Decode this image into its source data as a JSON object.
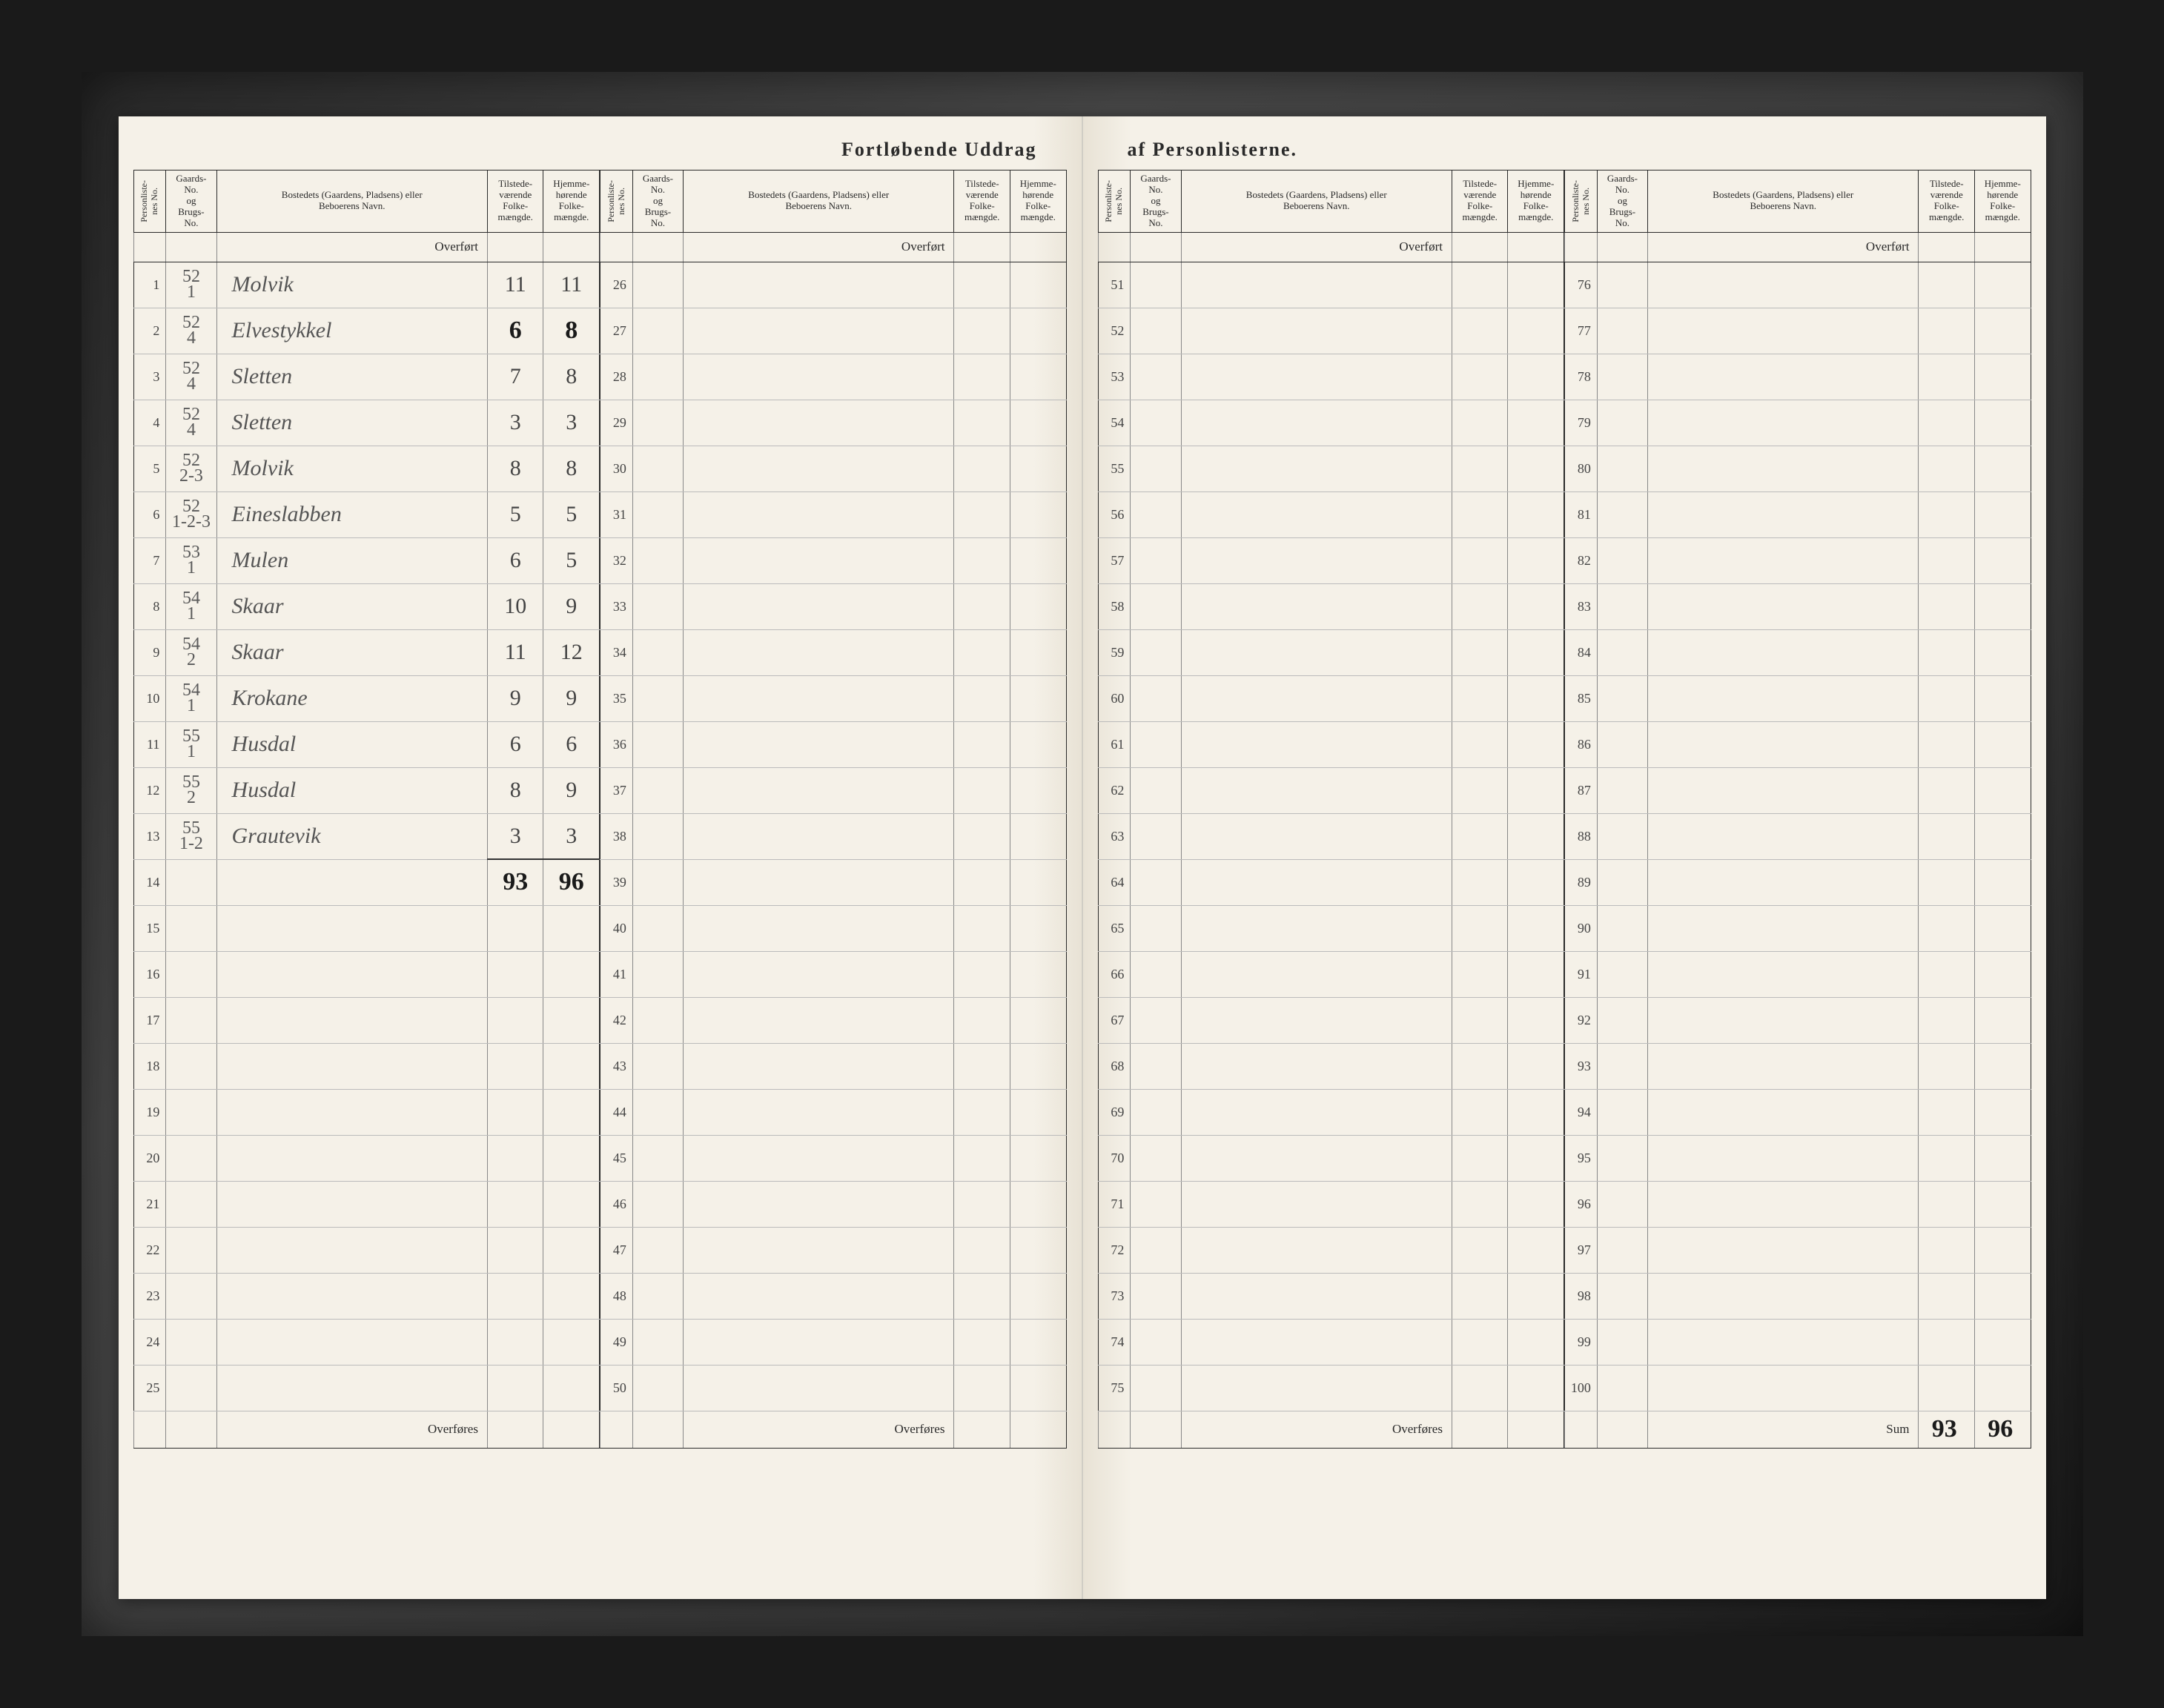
{
  "title_left": "Fortløbende Uddrag",
  "title_right": "af Personlisterne.",
  "headers": {
    "personliste": "Personliste-\nnes No.",
    "gaards": "Gaards-\nNo.\nog\nBrugs-\nNo.",
    "bosted": "Bostedets (Gaardens, Pladsens) eller\nBeboerens Navn.",
    "tilstede": "Tilstede-\nværende\nFolke-\nmængde.",
    "hjemme": "Hjemme-\nhørende\nFolke-\nmængde."
  },
  "overfort": "Overført",
  "overfores": "Overføres",
  "sum": "Sum",
  "blocks": [
    {
      "start": 1,
      "end": 25,
      "rows": [
        {
          "n": 1,
          "g": "52\n1",
          "name": "Molvik",
          "tv": "11",
          "hh": "11"
        },
        {
          "n": 2,
          "g": "52\n4",
          "name": "Elvestykkel",
          "tv": "6",
          "hh": "8",
          "dark": true
        },
        {
          "n": 3,
          "g": "52\n4",
          "name": "Sletten",
          "tv": "7",
          "hh": "8"
        },
        {
          "n": 4,
          "g": "52\n4",
          "name": "Sletten",
          "tv": "3",
          "hh": "3"
        },
        {
          "n": 5,
          "g": "52\n2-3",
          "name": "Molvik",
          "tv": "8",
          "hh": "8"
        },
        {
          "n": 6,
          "g": "52\n1-2-3",
          "name": "Eineslabben",
          "tv": "5",
          "hh": "5"
        },
        {
          "n": 7,
          "g": "53\n1",
          "name": "Mulen",
          "tv": "6",
          "hh": "5"
        },
        {
          "n": 8,
          "g": "54\n1",
          "name": "Skaar",
          "tv": "10",
          "hh": "9"
        },
        {
          "n": 9,
          "g": "54\n2",
          "name": "Skaar",
          "tv": "11",
          "hh": "12"
        },
        {
          "n": 10,
          "g": "54\n1",
          "name": "Krokane",
          "tv": "9",
          "hh": "9"
        },
        {
          "n": 11,
          "g": "55\n1",
          "name": "Husdal",
          "tv": "6",
          "hh": "6"
        },
        {
          "n": 12,
          "g": "55\n2",
          "name": "Husdal",
          "tv": "8",
          "hh": "9"
        },
        {
          "n": 13,
          "g": "55\n1-2",
          "name": "Grautevik",
          "tv": "3",
          "hh": "3"
        },
        {
          "n": 14,
          "g": "",
          "name": "",
          "tv": "93",
          "hh": "96",
          "total": true,
          "dark": true
        }
      ]
    },
    {
      "start": 26,
      "end": 50,
      "rows": []
    },
    {
      "start": 51,
      "end": 75,
      "rows": []
    },
    {
      "start": 76,
      "end": 100,
      "rows": [],
      "sum": {
        "tv": "93",
        "hh": "96"
      }
    }
  ],
  "colors": {
    "paper": "#f5f1e8",
    "ink": "#2a2a2a",
    "script": "#555",
    "rule": "#888",
    "faint_rule": "#bbb",
    "frame_bg": "#2a2a2a"
  }
}
